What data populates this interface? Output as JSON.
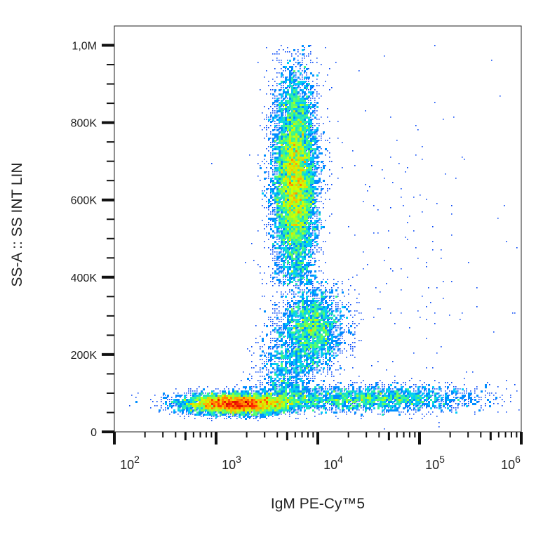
{
  "chart_data": {
    "type": "heatmap",
    "subtype": "flow-cytometry density dot plot",
    "title": "",
    "xlabel": "IgM PE-Cy™5",
    "ylabel": "SS-A :: SS INT LIN",
    "x_scale": "log",
    "xlim": [
      100,
      1000000
    ],
    "ylim": [
      0,
      1050000
    ],
    "grid": false,
    "x_ticks": [
      {
        "value": 100,
        "base": "10",
        "exp": "2"
      },
      {
        "value": 1000,
        "base": "10",
        "exp": "3"
      },
      {
        "value": 10000,
        "base": "10",
        "exp": "4"
      },
      {
        "value": 100000,
        "base": "10",
        "exp": "5"
      },
      {
        "value": 1000000,
        "base": "10",
        "exp": "6"
      }
    ],
    "y_ticks": [
      {
        "value": 0,
        "label": "0"
      },
      {
        "value": 200000,
        "label": "200K"
      },
      {
        "value": 400000,
        "label": "400K"
      },
      {
        "value": 600000,
        "label": "600K"
      },
      {
        "value": 800000,
        "label": "800K"
      },
      {
        "value": 1000000,
        "label": "1,0M"
      }
    ],
    "colormap": [
      "#0000c8",
      "#0050ff",
      "#00c8ff",
      "#40ff80",
      "#d0ff00",
      "#ffb000",
      "#ff2000",
      "#c00000"
    ],
    "populations": [
      {
        "x_center": 6000,
        "x_log_sd": 0.11,
        "y_center": 650000,
        "y_sd": 140000,
        "y_range": [
          380000,
          1000000
        ],
        "events": 9000
      },
      {
        "x_center": 9000,
        "x_log_sd": 0.16,
        "y_center": 270000,
        "y_sd": 55000,
        "y_range": [
          150000,
          400000
        ],
        "events": 2600
      },
      {
        "x_center": 1600,
        "x_log_sd": 0.28,
        "y_center": 72000,
        "y_sd": 14000,
        "y_range": [
          30000,
          130000
        ],
        "events": 5000
      },
      {
        "x_center": 30000,
        "x_log_sd": 0.55,
        "y_center": 85000,
        "y_sd": 18000,
        "y_range": [
          30000,
          150000
        ],
        "events": 2600
      },
      {
        "x_center": 5000,
        "x_log_sd": 0.15,
        "y_center": 150000,
        "y_sd": 60000,
        "y_range": [
          60000,
          400000
        ],
        "events": 1200
      },
      {
        "x_center": 60000,
        "x_log_sd": 0.7,
        "y_center": 450000,
        "y_sd": 280000,
        "y_range": [
          0,
          1000000
        ],
        "events": 220
      }
    ]
  }
}
